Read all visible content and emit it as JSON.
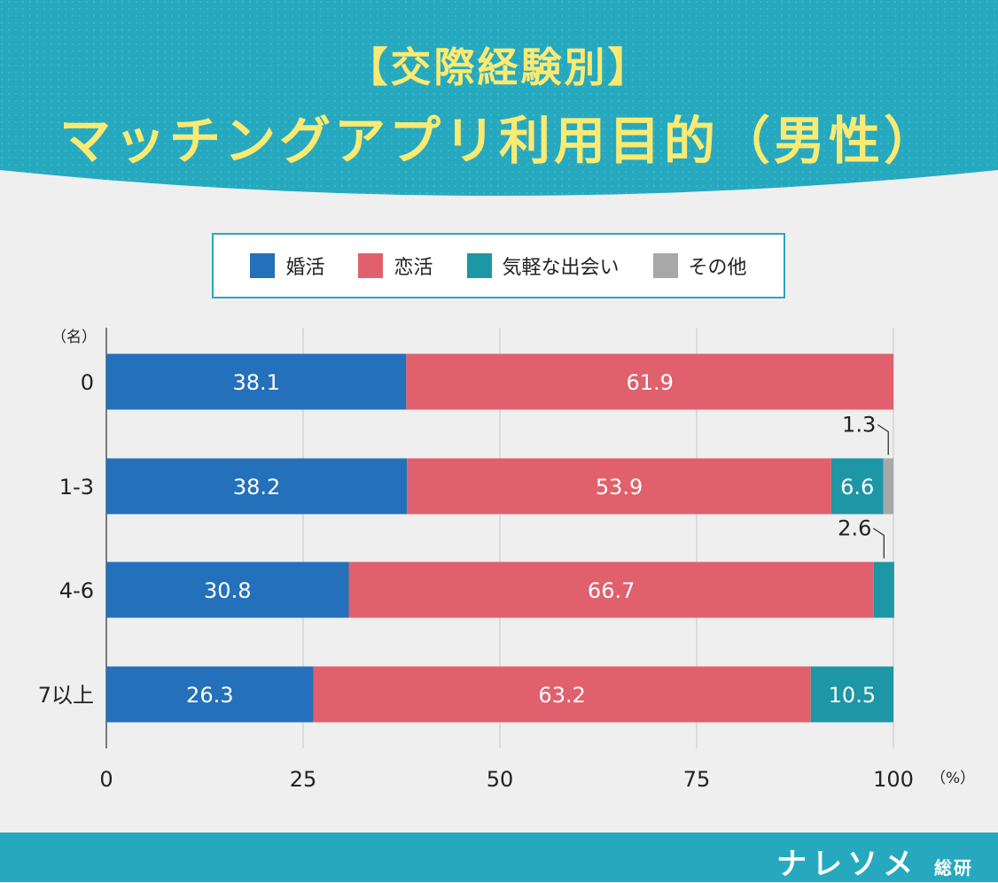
{
  "header": {
    "title_line1": "【交際経験別】",
    "title_line2": "マッチングアプリ利用目的（男性）",
    "bg_color": "#26a9bf",
    "title_color": "#fbea72"
  },
  "legend": [
    {
      "label": "婚活",
      "color": "#2470ba"
    },
    {
      "label": "恋活",
      "color": "#e0606d"
    },
    {
      "label": "気軽な出会い",
      "color": "#1d96a6"
    },
    {
      "label": "その他",
      "color": "#a8a8a8"
    }
  ],
  "footer": {
    "brand": "ナレソメ",
    "brand_suffix": "総研"
  },
  "chart_data": {
    "type": "bar",
    "orientation": "horizontal",
    "stacked": true,
    "categories": [
      "0",
      "1-3",
      "4-6",
      "7以上"
    ],
    "series": [
      {
        "name": "婚活",
        "color": "#2470ba",
        "values": [
          38.1,
          38.2,
          30.8,
          26.3
        ]
      },
      {
        "name": "恋活",
        "color": "#e0606d",
        "values": [
          61.9,
          53.9,
          66.7,
          63.2
        ]
      },
      {
        "name": "気軽な出会い",
        "color": "#1d96a6",
        "values": [
          0,
          6.6,
          2.6,
          10.5
        ]
      },
      {
        "name": "その他",
        "color": "#a8a8a8",
        "values": [
          0,
          1.3,
          0,
          0
        ]
      }
    ],
    "ylabel": "（名）",
    "xlabel": "（%）",
    "xlim": [
      0,
      100
    ],
    "xticks": [
      0,
      25,
      50,
      75,
      100
    ],
    "grid": true,
    "legend_position": "top"
  }
}
